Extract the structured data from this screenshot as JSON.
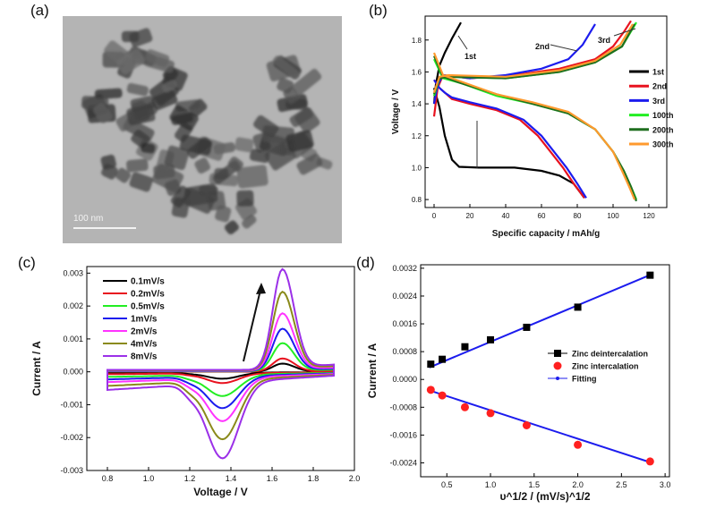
{
  "panels": {
    "a": "(a)",
    "b": "(b)",
    "c": "(c)",
    "d": "(d)"
  },
  "tem_image": {
    "scale_label": "100 nm"
  },
  "chart_data": [
    {
      "id": "b",
      "type": "line",
      "xlabel": "Specific capacity / mAh/g",
      "ylabel": "Voltage / V",
      "xlim": [
        -5,
        130
      ],
      "ylim": [
        0.75,
        1.95
      ],
      "xticks": [
        0,
        20,
        40,
        60,
        80,
        100,
        120
      ],
      "yticks": [
        0.8,
        1.0,
        1.2,
        1.4,
        1.6,
        1.8
      ],
      "ytick_labels": [
        "0.8",
        "1.0",
        "1.2",
        "1.4",
        "1.6",
        "1.8"
      ],
      "grid": false,
      "legend_position": "right",
      "annotations": [
        "1st",
        "2nd",
        "3rd"
      ],
      "series": [
        {
          "name": "1st",
          "color": "#000000",
          "discharge": [
            [
              0,
              1.5
            ],
            [
              3,
              1.38
            ],
            [
              6,
              1.2
            ],
            [
              10,
              1.05
            ],
            [
              14,
              1.005
            ],
            [
              25,
              1.0
            ],
            [
              45,
              1.0
            ],
            [
              60,
              0.98
            ],
            [
              70,
              0.95
            ],
            [
              78,
              0.9
            ],
            [
              84,
              0.81
            ]
          ],
          "charge": [
            [
              0,
              1.4
            ],
            [
              1,
              1.52
            ],
            [
              3,
              1.64
            ],
            [
              6,
              1.72
            ],
            [
              10,
              1.81
            ],
            [
              15,
              1.91
            ]
          ]
        },
        {
          "name": "2nd",
          "color": "#e8121f",
          "discharge": [
            [
              0,
              1.55
            ],
            [
              3,
              1.5
            ],
            [
              6,
              1.47
            ],
            [
              10,
              1.43
            ],
            [
              20,
              1.4
            ],
            [
              35,
              1.36
            ],
            [
              48,
              1.3
            ],
            [
              58,
              1.2
            ],
            [
              65,
              1.1
            ],
            [
              72,
              1.0
            ],
            [
              78,
              0.9
            ],
            [
              84,
              0.81
            ]
          ],
          "charge": [
            [
              0,
              1.32
            ],
            [
              2,
              1.5
            ],
            [
              5,
              1.58
            ],
            [
              20,
              1.56
            ],
            [
              45,
              1.58
            ],
            [
              70,
              1.62
            ],
            [
              90,
              1.68
            ],
            [
              100,
              1.76
            ],
            [
              106,
              1.85
            ],
            [
              110,
              1.92
            ]
          ]
        },
        {
          "name": "3rd",
          "color": "#1c1cee",
          "discharge": [
            [
              0,
              1.55
            ],
            [
              3,
              1.5
            ],
            [
              6,
              1.47
            ],
            [
              10,
              1.44
            ],
            [
              20,
              1.41
            ],
            [
              35,
              1.37
            ],
            [
              50,
              1.3
            ],
            [
              60,
              1.2
            ],
            [
              67,
              1.1
            ],
            [
              74,
              1.0
            ],
            [
              80,
              0.9
            ],
            [
              85,
              0.81
            ]
          ],
          "charge": [
            [
              0,
              1.4
            ],
            [
              2,
              1.52
            ],
            [
              5,
              1.58
            ],
            [
              20,
              1.56
            ],
            [
              40,
              1.58
            ],
            [
              60,
              1.62
            ],
            [
              75,
              1.68
            ],
            [
              83,
              1.77
            ],
            [
              90,
              1.9
            ]
          ]
        },
        {
          "name": "100th",
          "color": "#22ee22",
          "discharge": [
            [
              0,
              1.68
            ],
            [
              5,
              1.56
            ],
            [
              15,
              1.53
            ],
            [
              35,
              1.45
            ],
            [
              55,
              1.4
            ],
            [
              75,
              1.34
            ],
            [
              90,
              1.24
            ],
            [
              100,
              1.1
            ],
            [
              106,
              0.98
            ],
            [
              110,
              0.88
            ],
            [
              113,
              0.8
            ]
          ],
          "charge": [
            [
              0,
              1.45
            ],
            [
              3,
              1.56
            ],
            [
              8,
              1.57
            ],
            [
              40,
              1.56
            ],
            [
              70,
              1.6
            ],
            [
              90,
              1.66
            ],
            [
              105,
              1.76
            ],
            [
              113,
              1.91
            ]
          ]
        },
        {
          "name": "200th",
          "color": "#1f6e1f",
          "discharge": [
            [
              0,
              1.7
            ],
            [
              5,
              1.57
            ],
            [
              15,
              1.53
            ],
            [
              35,
              1.46
            ],
            [
              55,
              1.4
            ],
            [
              75,
              1.34
            ],
            [
              90,
              1.24
            ],
            [
              100,
              1.1
            ],
            [
              106,
              0.98
            ],
            [
              110,
              0.88
            ],
            [
              113,
              0.79
            ]
          ],
          "charge": [
            [
              0,
              1.46
            ],
            [
              3,
              1.56
            ],
            [
              8,
              1.57
            ],
            [
              40,
              1.56
            ],
            [
              70,
              1.6
            ],
            [
              90,
              1.66
            ],
            [
              105,
              1.76
            ],
            [
              112,
              1.9
            ]
          ]
        },
        {
          "name": "300th",
          "color": "#ff9a2e",
          "discharge": [
            [
              0,
              1.72
            ],
            [
              5,
              1.58
            ],
            [
              15,
              1.54
            ],
            [
              35,
              1.46
            ],
            [
              55,
              1.41
            ],
            [
              75,
              1.35
            ],
            [
              90,
              1.24
            ],
            [
              100,
              1.1
            ],
            [
              105,
              0.98
            ],
            [
              109,
              0.88
            ],
            [
              112,
              0.8
            ]
          ],
          "charge": [
            [
              0,
              1.47
            ],
            [
              3,
              1.57
            ],
            [
              8,
              1.58
            ],
            [
              40,
              1.57
            ],
            [
              70,
              1.61
            ],
            [
              90,
              1.67
            ],
            [
              104,
              1.77
            ],
            [
              111,
              1.9
            ]
          ]
        }
      ]
    },
    {
      "id": "c",
      "type": "line",
      "xlabel": "Voltage / V",
      "ylabel": "Current / A",
      "xlim": [
        0.7,
        2.0
      ],
      "ylim": [
        -0.003,
        0.0032
      ],
      "xticks": [
        0.8,
        1.0,
        1.2,
        1.4,
        1.6,
        1.8,
        2.0
      ],
      "xtick_labels": [
        "0.8",
        "1.0",
        "1.2",
        "1.4",
        "1.6",
        "1.8",
        "2.0"
      ],
      "yticks": [
        -0.003,
        -0.002,
        -0.001,
        0.0,
        0.001,
        0.002,
        0.003
      ],
      "ytick_labels": [
        "-0.003",
        "-0.002",
        "-0.001",
        "0.000",
        "0.001",
        "0.002",
        "0.003"
      ],
      "grid": false,
      "legend_position": "top-left",
      "series": [
        {
          "name": "0.1mV/s",
          "color": "#000000",
          "scale": 0.08
        },
        {
          "name": "0.2mV/s",
          "color": "#e8121f",
          "scale": 0.13
        },
        {
          "name": "0.5mV/s",
          "color": "#22ee22",
          "scale": 0.28
        },
        {
          "name": "1mV/s",
          "color": "#1c1cee",
          "scale": 0.42
        },
        {
          "name": "2mV/s",
          "color": "#ff33ff",
          "scale": 0.57
        },
        {
          "name": "4mV/s",
          "color": "#8a8a1a",
          "scale": 0.78
        },
        {
          "name": "8mV/s",
          "color": "#9b30e8",
          "scale": 1.0
        }
      ],
      "peak_shape": {
        "anodic_peak_v": 1.65,
        "anodic_peak_a": 0.003,
        "cathodic_peak_v": 1.36,
        "cathodic_peak_a": -0.0023,
        "base_upper_a": 0.0001,
        "base_lower_a": -0.0011
      }
    },
    {
      "id": "d",
      "type": "scatter",
      "xlabel": "υ^1/2 / (mV/s)^1/2",
      "ylabel": "Current / A",
      "xlim": [
        0.2,
        3.05
      ],
      "ylim": [
        -0.0028,
        0.0033
      ],
      "xticks": [
        0.5,
        1.0,
        1.5,
        2.0,
        2.5,
        3.0
      ],
      "xtick_labels": [
        "0.5",
        "1.0",
        "1.5",
        "2.0",
        "2.5",
        "3.0"
      ],
      "yticks": [
        -0.0024,
        -0.0016,
        -0.0008,
        0.0,
        0.0008,
        0.0016,
        0.0024,
        0.0032
      ],
      "ytick_labels": [
        "-0.0024",
        "-0.0016",
        "-0.0008",
        "0.0000",
        "0.0008",
        "0.0016",
        "0.0024",
        "0.0032"
      ],
      "grid": false,
      "legend_position": "center-right",
      "x": [
        0.316,
        0.447,
        0.707,
        1.0,
        1.414,
        2.0,
        2.828
      ],
      "series": [
        {
          "name": "Zinc deintercalation",
          "color": "#000000",
          "marker": "square",
          "values": [
            0.00044,
            0.00058,
            0.00094,
            0.00114,
            0.0015,
            0.00208,
            0.003
          ]
        },
        {
          "name": "Zinc intercalation",
          "color": "#ff2020",
          "marker": "circle",
          "values": [
            -0.0003,
            -0.00046,
            -0.0008,
            -0.00097,
            -0.00132,
            -0.00188,
            -0.00236
          ]
        },
        {
          "name": "Fitting",
          "color": "#1c1cee",
          "marker": "line-dot",
          "fits": [
            [
              3e-05,
              0.001053
            ],
            [
              -7e-05,
              -0.000818
            ]
          ]
        }
      ]
    }
  ]
}
